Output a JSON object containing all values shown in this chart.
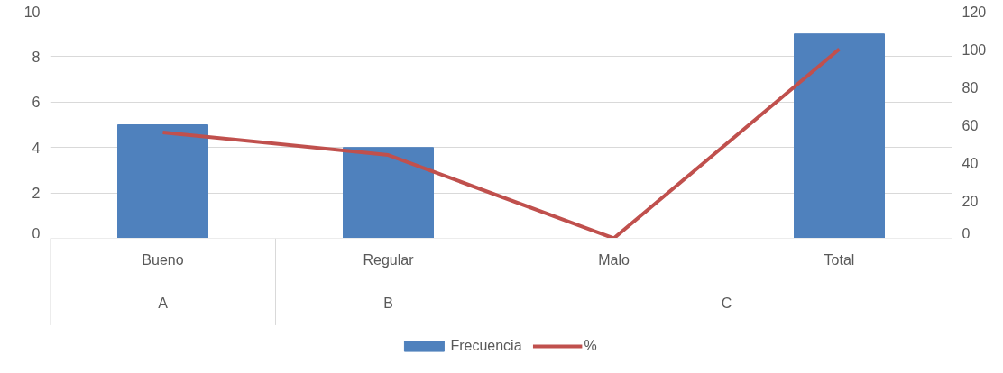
{
  "chart_data": {
    "type": "bar",
    "categories": [
      "Bueno",
      "Regular",
      "Malo",
      "Total"
    ],
    "series": [
      {
        "name": "Frecuencia",
        "color": "#4f81bd",
        "values": [
          5,
          4,
          0,
          9
        ]
      },
      {
        "name": "%",
        "type": "line",
        "axis": "y2",
        "color": "#c0504d",
        "values": [
          56,
          44,
          0,
          100
        ]
      }
    ],
    "ylim": [
      0,
      10
    ],
    "yticks": [
      0,
      2,
      4,
      6,
      8,
      10
    ],
    "y2lim": [
      0,
      120
    ],
    "y2ticks": [
      0,
      20,
      40,
      60,
      80,
      100,
      120
    ],
    "annotations": [
      "A",
      "B",
      "C"
    ],
    "grid": "y",
    "legend": "bottom",
    "marker": "none",
    "line_style": "solid"
  }
}
